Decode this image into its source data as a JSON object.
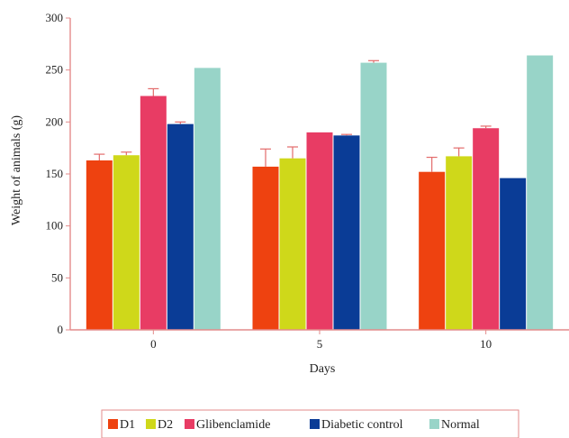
{
  "colors": {
    "axis": "#e38b8b",
    "errorbar": "#e36b6b"
  },
  "chart_data": {
    "type": "bar",
    "title": "",
    "xlabel": "Days",
    "ylabel": "Weight of animals (g)",
    "categories": [
      "0",
      "5",
      "10"
    ],
    "ylim": [
      0,
      300
    ],
    "yticks": [
      0,
      50,
      100,
      150,
      200,
      250,
      300
    ],
    "grid": false,
    "legend_position": "bottom",
    "series": [
      {
        "name": "D1",
        "color": "#ee4210",
        "values": [
          163,
          157,
          152
        ],
        "errors": [
          6,
          17,
          14
        ]
      },
      {
        "name": "D2",
        "color": "#cfd81a",
        "values": [
          168,
          165,
          167
        ],
        "errors": [
          3,
          11,
          8
        ]
      },
      {
        "name": "Glibenclamide",
        "color": "#e83c64",
        "values": [
          225,
          190,
          194
        ],
        "errors": [
          7,
          0,
          2
        ]
      },
      {
        "name": "Diabetic control",
        "color": "#0a3c96",
        "values": [
          198,
          187,
          146
        ],
        "errors": [
          2,
          1,
          0
        ]
      },
      {
        "name": "Normal",
        "color": "#98d4c8",
        "values": [
          252,
          257,
          264
        ],
        "errors": [
          0,
          2,
          0
        ]
      }
    ]
  }
}
